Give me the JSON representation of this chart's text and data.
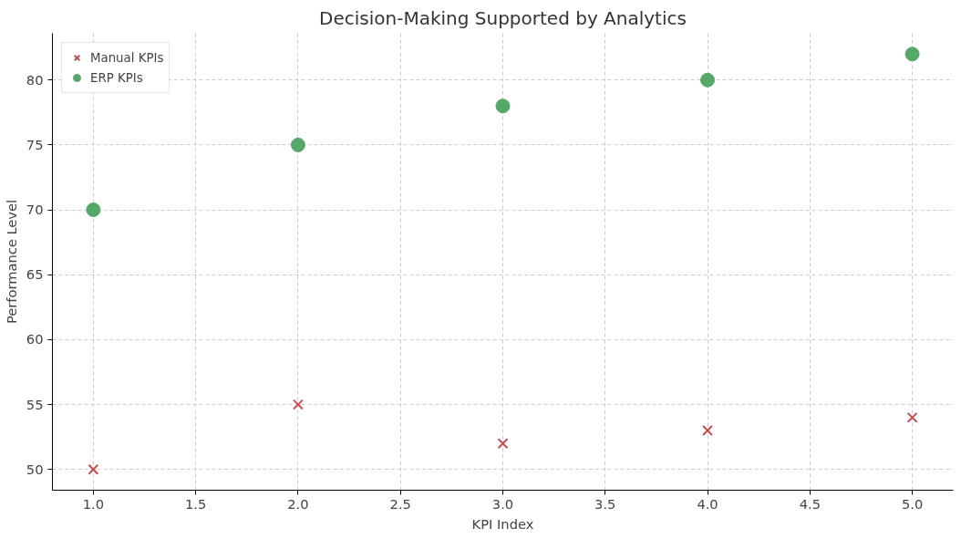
{
  "chart_data": {
    "type": "scatter",
    "title": "Decision-Making Supported by Analytics",
    "xlabel": "KPI Index",
    "ylabel": "Performance Level",
    "x": [
      1,
      2,
      3,
      4,
      5
    ],
    "series": [
      {
        "name": "Manual KPIs",
        "color": "#c44e52",
        "marker": "cross",
        "values": [
          50,
          55,
          52,
          53,
          54
        ]
      },
      {
        "name": "ERP KPIs",
        "color": "#55a868",
        "marker": "circle",
        "values": [
          70,
          75,
          78,
          80,
          82
        ]
      }
    ],
    "xlim": [
      0.8,
      5.2
    ],
    "xticks": [
      {
        "value": 1,
        "label": "1.0"
      },
      {
        "value": 1.5,
        "label": "1.5"
      },
      {
        "value": 2,
        "label": "2.0"
      },
      {
        "value": 2.5,
        "label": "2.5"
      },
      {
        "value": 3,
        "label": "3.0"
      },
      {
        "value": 3.5,
        "label": "3.5"
      },
      {
        "value": 4,
        "label": "4.0"
      },
      {
        "value": 4.5,
        "label": "4.5"
      },
      {
        "value": 5,
        "label": "5.0"
      }
    ],
    "ylim": [
      48.4,
      83.6
    ],
    "yticks": [
      50,
      55,
      60,
      65,
      70,
      75,
      80
    ],
    "grid": true,
    "legend": "top left"
  }
}
